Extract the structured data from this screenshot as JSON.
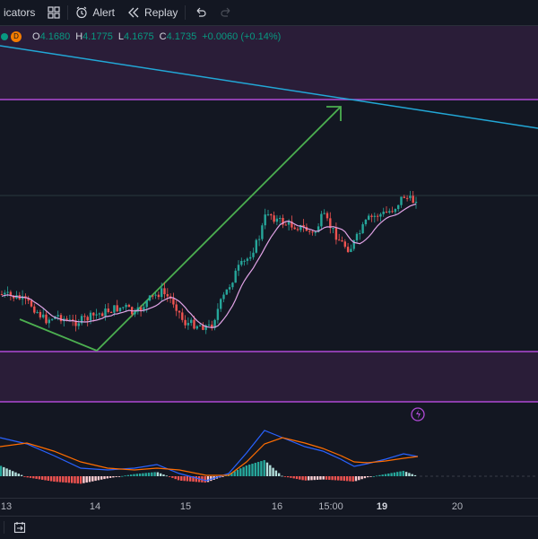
{
  "toolbar": {
    "indicators_label": "icators",
    "alert_label": "Alert",
    "replay_label": "Replay"
  },
  "legend": {
    "badge": "D",
    "open_label": "O",
    "open": "4.1680",
    "high_label": "H",
    "high": "4.1775",
    "low_label": "L",
    "low": "4.1675",
    "close_label": "C",
    "close": "4.1735",
    "change": "+0.0060 (+0.14%)"
  },
  "time_axis": [
    "13",
    "14",
    "15",
    "16",
    "15:00",
    "19",
    "20"
  ],
  "colors": {
    "background": "#131722",
    "up": "#26a69a",
    "down": "#ef5350",
    "ma": "#e1a3e6",
    "zone": "#2d1f3a",
    "zone_border": "#b04ad6",
    "trendline": "#22a7d6",
    "arrow": "#4caf50",
    "macd": "#2962ff",
    "signal": "#ff6d00"
  },
  "icons": [
    "indicators-icon",
    "alert-icon",
    "replay-icon",
    "undo-icon",
    "redo-icon",
    "lightning-icon",
    "date-range-icon"
  ]
}
